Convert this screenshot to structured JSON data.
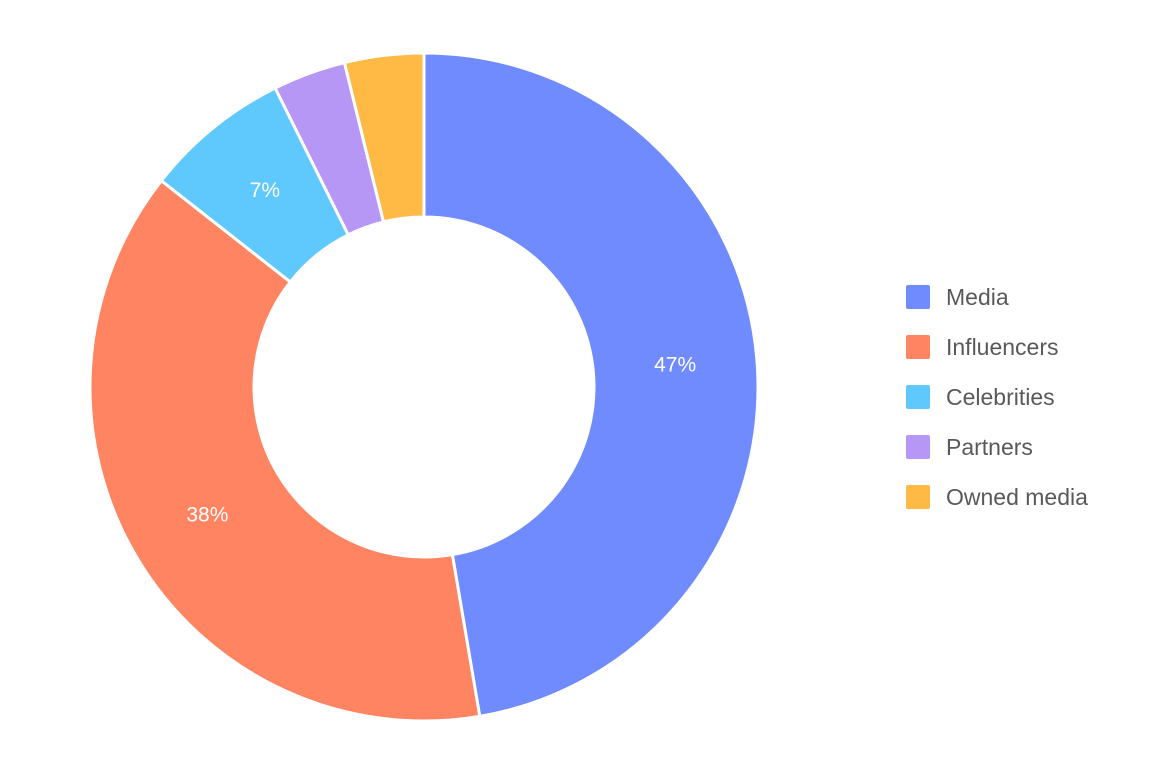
{
  "chart_data": {
    "type": "pie",
    "donut": true,
    "slices": [
      {
        "name": "Media",
        "value": 47,
        "label": "47%",
        "color": "#6F8BFD"
      },
      {
        "name": "Influencers",
        "value": 38,
        "label": "38%",
        "color": "#FF8461"
      },
      {
        "name": "Celebrities",
        "value": 7,
        "label": "7%",
        "color": "#5FC8FD"
      },
      {
        "name": "Partners",
        "value": 3.5,
        "label": "",
        "color": "#B697F5"
      },
      {
        "name": "Owned media",
        "value": 3.8,
        "label": "",
        "color": "#FFB945"
      }
    ],
    "legend_position": "right"
  }
}
